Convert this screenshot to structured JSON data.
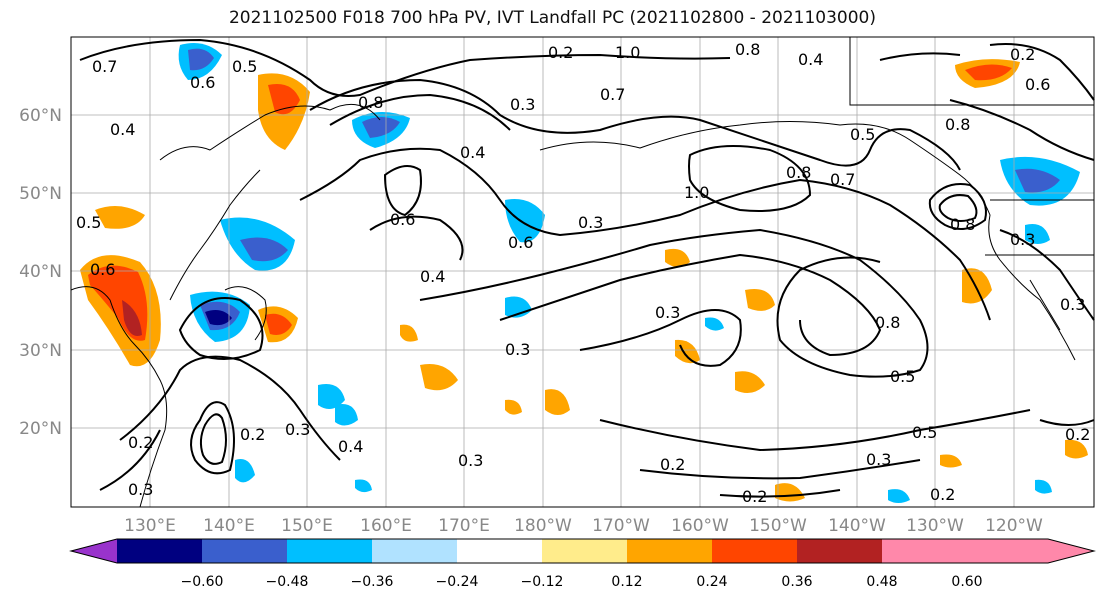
{
  "title": "2021102500 F018 700 hPa PV, IVT Landfall PC (2021102800 - 2021103000)",
  "lat_labels": [
    "60°N",
    "50°N",
    "40°N",
    "30°N",
    "20°N"
  ],
  "lon_labels": [
    "130°E",
    "140°E",
    "150°E",
    "160°E",
    "170°E",
    "180°W",
    "170°W",
    "160°W",
    "150°W",
    "140°W",
    "130°W",
    "120°W"
  ],
  "colorbar": {
    "colors": [
      "#9933cc",
      "#000080",
      "#3a5fcd",
      "#00bfff",
      "#b0e2ff",
      "#ffffff",
      "#ffec8b",
      "#ffa500",
      "#ff4500",
      "#b22222",
      "#ff88aa"
    ],
    "tick_labels": [
      "−0.60",
      "−0.48",
      "−0.36",
      "−0.24",
      "−0.12",
      "0.12",
      "0.24",
      "0.36",
      "0.48",
      "0.60"
    ]
  },
  "contour_labels": [
    "0.7",
    "0.6",
    "0.5",
    "0.4",
    "0.8",
    "0.3",
    "0.2",
    "1.0",
    "0.7",
    "0.8",
    "0.6",
    "0.4",
    "0.6",
    "0.3",
    "0.4",
    "0.3",
    "0.2",
    "0.3",
    "0.8",
    "0.5",
    "0.5",
    "0.3",
    "0.2",
    "0.2",
    "1.0",
    "0.8",
    "0.7",
    "0.6",
    "0.5",
    "0.4",
    "0.3",
    "0.2",
    "0.5",
    "0.6",
    "0.3",
    "0.8",
    "0.8",
    "0.3",
    "0.3",
    "0.4",
    "0.2",
    "0.2",
    "0.3",
    "0.2"
  ]
}
